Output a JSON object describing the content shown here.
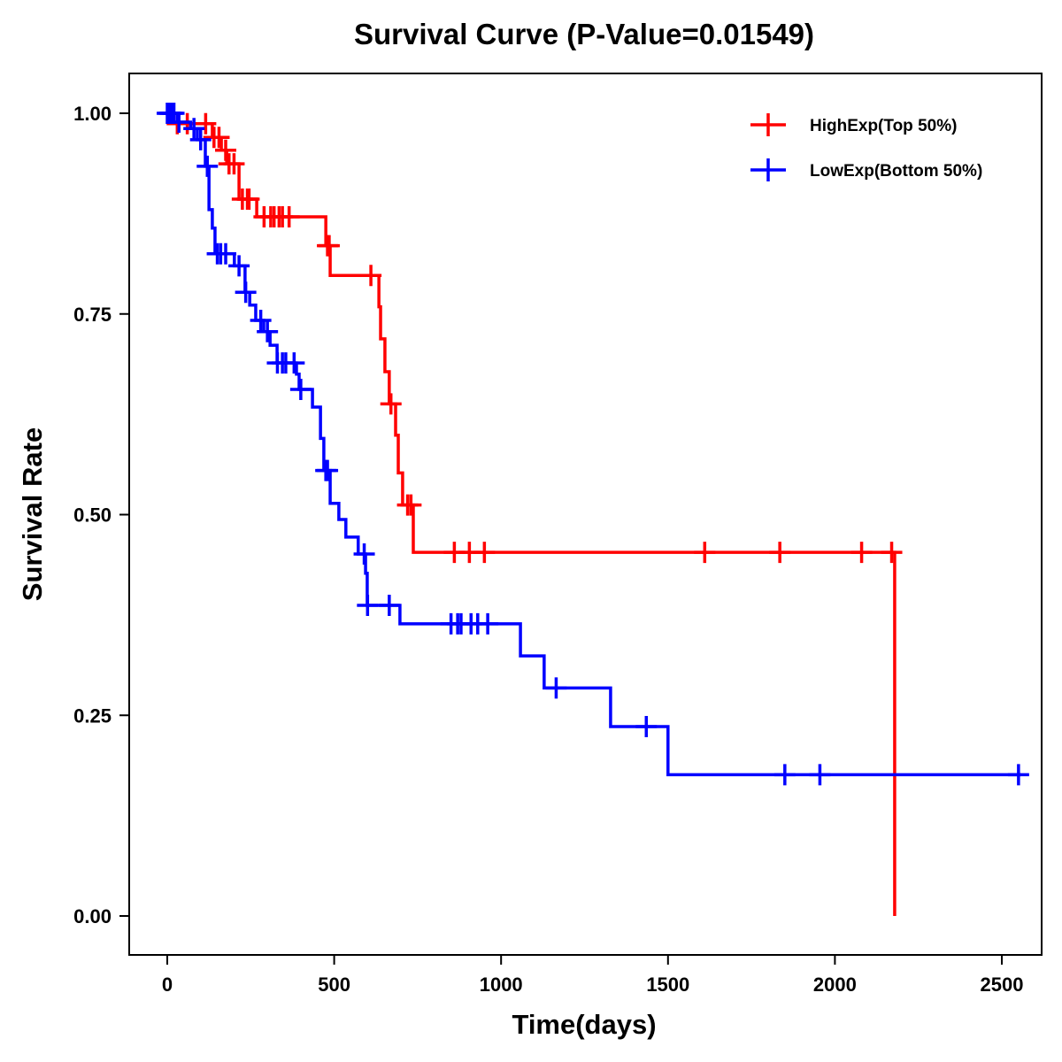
{
  "chart_data": {
    "type": "line",
    "subtype": "kaplan-meier",
    "title": "Survival Curve (P-Value=0.01549)",
    "xlabel": "Time(days)",
    "ylabel": "Survival Rate",
    "xlim": [
      -110,
      2600
    ],
    "ylim": [
      -0.05,
      1.05
    ],
    "xticks": [
      "0",
      "500",
      "1000",
      "1500",
      "2000",
      "2500"
    ],
    "xtick_values": [
      0,
      500,
      1000,
      1500,
      2000,
      2500
    ],
    "yticks": [
      "0.00",
      "0.25",
      "0.50",
      "0.75",
      "1.00"
    ],
    "ytick_values": [
      0,
      0.25,
      0.5,
      0.75,
      1.0
    ],
    "grid": false,
    "legend_position": "top-right",
    "series": [
      {
        "name": "HighExp(Top 50%)",
        "color": "#ff0000",
        "end_time": 2179,
        "steps": [
          [
            0,
            1.0
          ],
          [
            16,
            0.987
          ],
          [
            135,
            0.97
          ],
          [
            162,
            0.954
          ],
          [
            178,
            0.937
          ],
          [
            215,
            0.893
          ],
          [
            268,
            0.871
          ],
          [
            475,
            0.835
          ],
          [
            488,
            0.798
          ],
          [
            634,
            0.759
          ],
          [
            639,
            0.719
          ],
          [
            652,
            0.678
          ],
          [
            665,
            0.638
          ],
          [
            684,
            0.599
          ],
          [
            692,
            0.552
          ],
          [
            705,
            0.512
          ],
          [
            737,
            0.453
          ],
          [
            2179,
            0.0
          ]
        ],
        "censored": [
          30,
          60,
          115,
          140,
          155,
          175,
          185,
          200,
          225,
          240,
          245,
          290,
          310,
          320,
          335,
          345,
          365,
          480,
          485,
          610,
          670,
          720,
          730,
          860,
          905,
          950,
          1610,
          1835,
          2080,
          2170
        ]
      },
      {
        "name": "LowExp(Bottom 50%)",
        "color": "#0000ff",
        "end_time": 2558,
        "steps": [
          [
            0,
            1.0
          ],
          [
            30,
            0.989
          ],
          [
            70,
            0.981
          ],
          [
            90,
            0.967
          ],
          [
            114,
            0.934
          ],
          [
            125,
            0.88
          ],
          [
            135,
            0.857
          ],
          [
            143,
            0.825
          ],
          [
            201,
            0.81
          ],
          [
            233,
            0.777
          ],
          [
            247,
            0.761
          ],
          [
            265,
            0.742
          ],
          [
            289,
            0.728
          ],
          [
            308,
            0.711
          ],
          [
            329,
            0.689
          ],
          [
            387,
            0.675
          ],
          [
            395,
            0.656
          ],
          [
            435,
            0.634
          ],
          [
            459,
            0.595
          ],
          [
            469,
            0.555
          ],
          [
            488,
            0.514
          ],
          [
            514,
            0.494
          ],
          [
            535,
            0.472
          ],
          [
            572,
            0.451
          ],
          [
            594,
            0.427
          ],
          [
            599,
            0.387
          ],
          [
            697,
            0.364
          ],
          [
            1058,
            0.324
          ],
          [
            1129,
            0.284
          ],
          [
            1328,
            0.236
          ],
          [
            1500,
            0.176
          ]
        ],
        "censored": [
          0,
          5,
          10,
          15,
          20,
          35,
          80,
          100,
          120,
          150,
          160,
          175,
          215,
          235,
          280,
          300,
          330,
          345,
          355,
          380,
          400,
          475,
          480,
          590,
          600,
          665,
          850,
          870,
          880,
          910,
          930,
          960,
          1165,
          1435,
          1850,
          1955,
          2550
        ]
      }
    ]
  }
}
